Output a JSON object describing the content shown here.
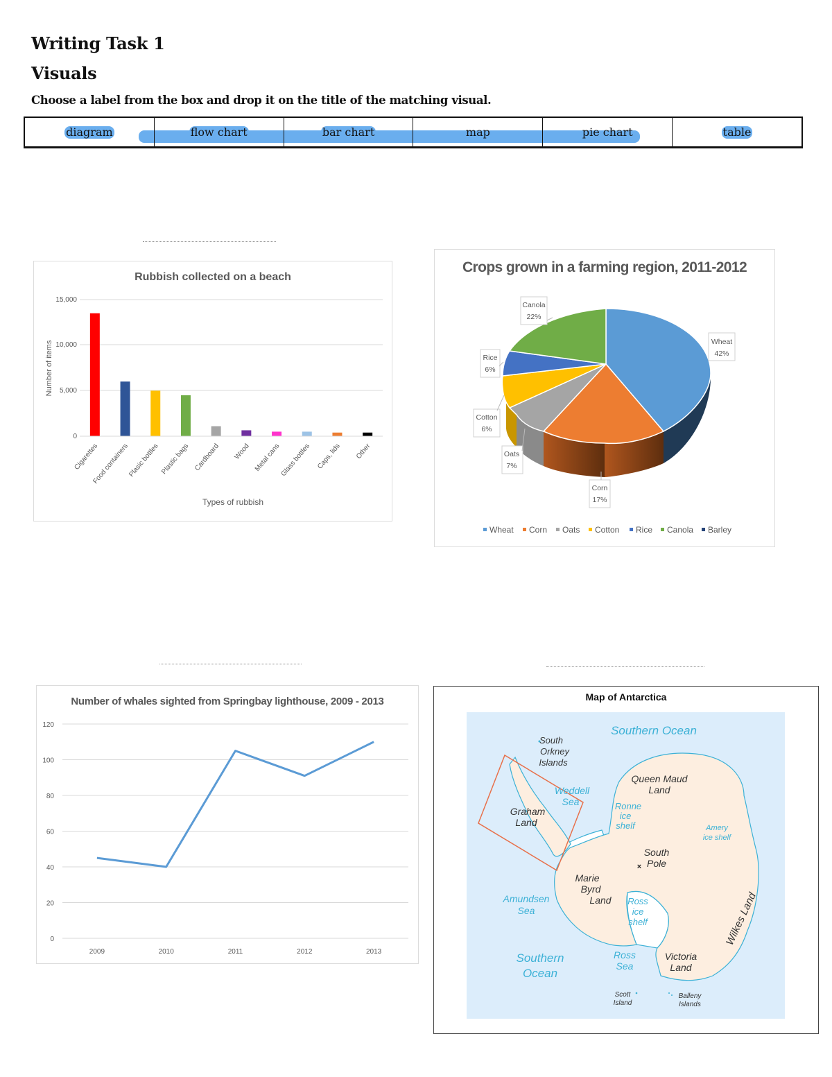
{
  "header": {
    "title": "Writing Task 1",
    "subtitle": "Visuals",
    "instruction": "Choose a label from the box and drop it on the title of the matching visual."
  },
  "label_box": {
    "labels": [
      "diagram",
      "flow chart",
      "bar chart",
      "map",
      "pie chart",
      "table"
    ],
    "highlight_color": "#6aaeee"
  },
  "drop_targets": [
    {
      "position": "above bar chart",
      "value": ""
    },
    {
      "position": "above line chart",
      "value": ""
    },
    {
      "position": "above map",
      "value": ""
    }
  ],
  "chart_data": [
    {
      "type": "bar",
      "title": "Rubbish collected on a beach",
      "xlabel": "Types of rubbish",
      "ylabel": "Number of items",
      "categories": [
        "Cigarettes",
        "Food containers",
        "Plasic bottles",
        "Plastic bags",
        "Cardboard",
        "Wood",
        "Metal cans",
        "Glass bottles",
        "Caps, lids",
        "Other"
      ],
      "values": [
        13500,
        6000,
        5000,
        4500,
        1100,
        650,
        500,
        500,
        400,
        400
      ],
      "colors": [
        "#ff0000",
        "#2f5597",
        "#ffc000",
        "#70ad47",
        "#a5a5a5",
        "#7030a0",
        "#ff33cc",
        "#9dc3e6",
        "#ed7d31",
        "#000000"
      ],
      "yticks": [
        "0",
        "5,000",
        "10,000",
        "15,000"
      ],
      "ylim": [
        0,
        15000
      ],
      "grid": true,
      "legend": "none"
    },
    {
      "type": "pie",
      "title": "Crops grown in a farming region, 2011-2012",
      "labels": [
        "Wheat",
        "Corn",
        "Oats",
        "Cotton",
        "Rice",
        "Canola",
        "Barley"
      ],
      "values": [
        42,
        17,
        7,
        6,
        6,
        22,
        0
      ],
      "data_labels": [
        {
          "name": "Wheat",
          "pct": "42%"
        },
        {
          "name": "Corn",
          "pct": "17%"
        },
        {
          "name": "Oats",
          "pct": "7%"
        },
        {
          "name": "Cotton",
          "pct": "6%"
        },
        {
          "name": "Rice",
          "pct": "6%"
        },
        {
          "name": "Canola",
          "pct": "22%"
        }
      ],
      "colors": [
        "#5b9bd5",
        "#ed7d31",
        "#a5a5a5",
        "#ffc000",
        "#4472c4",
        "#70ad47",
        "#264478"
      ],
      "legend": "bottom",
      "style": "3D"
    },
    {
      "type": "line",
      "title": "Number of whales sighted from Springbay lighthouse, 2009 - 2013",
      "x": [
        "2009",
        "2010",
        "2011",
        "2012",
        "2013"
      ],
      "series": [
        {
          "name": "Whales sighted",
          "values": [
            45,
            40,
            105,
            91,
            110
          ],
          "color": "#5b9bd5"
        }
      ],
      "yticks": [
        "0",
        "20",
        "40",
        "60",
        "80",
        "100",
        "120"
      ],
      "ylim": [
        0,
        120
      ],
      "grid": true,
      "legend": "none"
    }
  ],
  "map": {
    "title": "Map of Antarctica",
    "labels": {
      "southern_ocean_top": "Southern Ocean",
      "south_orkney": [
        "South",
        "Orkney",
        "Islands"
      ],
      "weddell_sea": [
        "Weddell",
        "Sea"
      ],
      "graham_land": [
        "Graham",
        "Land"
      ],
      "queen_maud_land": [
        "Queen Maud",
        "Land"
      ],
      "ronne_ice_shelf": [
        "Ronne",
        "ice",
        "shelf"
      ],
      "amery_ice_shelf": [
        "Amery",
        "ice shelf"
      ],
      "south_pole": [
        "South",
        "Pole"
      ],
      "marie_byrd_land": [
        "Marie",
        "Byrd",
        "Land"
      ],
      "amundsen_sea": [
        "Amundsen",
        "Sea"
      ],
      "ross_ice_shelf": [
        "Ross",
        "ice",
        "shelf"
      ],
      "wilkes_land": "Wilkes Land",
      "southern_ocean_bottom": [
        "Southern",
        "Ocean"
      ],
      "ross_sea": [
        "Ross",
        "Sea"
      ],
      "victoria_land": [
        "Victoria",
        "Land"
      ],
      "scott_island": [
        "Scott",
        "Island"
      ],
      "balleny_islands": [
        "Balleny",
        "Islands"
      ]
    },
    "colors": {
      "ocean": "#dcedfb",
      "land": "#fdeee0",
      "ocean_text": "#3cb1d6",
      "inset_box": "#e8704a"
    }
  }
}
